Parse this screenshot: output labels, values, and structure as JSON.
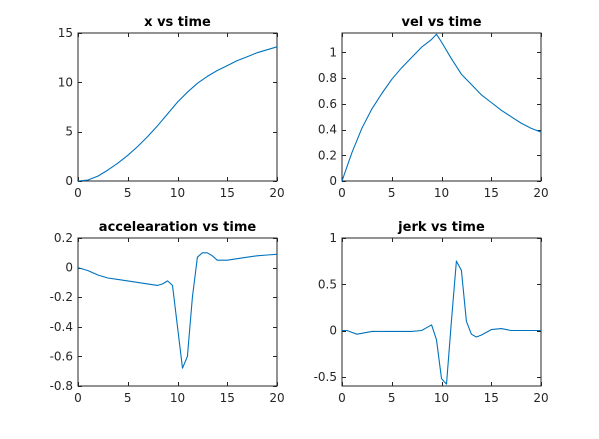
{
  "figure": {
    "background": "#ffffff",
    "line_color": "#0072bd"
  },
  "chart_data": [
    {
      "type": "line",
      "title": "x vs time",
      "xlabel": "",
      "ylabel": "",
      "xlim": [
        0,
        20
      ],
      "ylim": [
        0,
        15
      ],
      "x_ticks": [
        0,
        5,
        10,
        15,
        20
      ],
      "y_ticks": [
        0,
        5,
        10,
        15
      ],
      "grid": false,
      "series": [
        {
          "x": [
            0,
            1,
            2,
            3,
            4,
            5,
            6,
            7,
            8,
            9,
            10,
            11,
            12,
            13,
            14,
            15,
            16,
            17,
            18,
            19,
            20
          ],
          "y": [
            0,
            0.1,
            0.5,
            1.1,
            1.8,
            2.6,
            3.5,
            4.5,
            5.6,
            6.8,
            8.0,
            9.0,
            9.9,
            10.6,
            11.2,
            11.7,
            12.2,
            12.6,
            13.0,
            13.3,
            13.6
          ]
        }
      ]
    },
    {
      "type": "line",
      "title": "vel vs time",
      "xlabel": "",
      "ylabel": "",
      "xlim": [
        0,
        20
      ],
      "ylim": [
        0,
        1.15
      ],
      "x_ticks": [
        0,
        5,
        10,
        15,
        20
      ],
      "y_ticks": [
        0,
        0.2,
        0.4,
        0.6,
        0.8,
        1
      ],
      "grid": false,
      "series": [
        {
          "x": [
            0,
            1,
            2,
            3,
            4,
            5,
            6,
            7,
            8,
            9,
            9.5,
            10,
            11,
            12,
            13,
            14,
            15,
            16,
            17,
            18,
            19,
            20
          ],
          "y": [
            0,
            0.22,
            0.41,
            0.56,
            0.68,
            0.79,
            0.88,
            0.96,
            1.04,
            1.1,
            1.14,
            1.08,
            0.95,
            0.83,
            0.75,
            0.67,
            0.61,
            0.55,
            0.5,
            0.45,
            0.41,
            0.38
          ]
        }
      ]
    },
    {
      "type": "line",
      "title": "accelearation vs time",
      "xlabel": "",
      "ylabel": "",
      "xlim": [
        0,
        20
      ],
      "ylim": [
        -0.8,
        0.2
      ],
      "x_ticks": [
        0,
        5,
        10,
        15,
        20
      ],
      "y_ticks": [
        -0.8,
        -0.6,
        -0.4,
        -0.2,
        0,
        0.2
      ],
      "grid": false,
      "series": [
        {
          "x": [
            0,
            1,
            2,
            3,
            4,
            5,
            6,
            7,
            8,
            8.5,
            9,
            9.5,
            10,
            10.5,
            11,
            11.5,
            12,
            12.5,
            13,
            13.5,
            14,
            15,
            16,
            17,
            18,
            19,
            20
          ],
          "y": [
            0,
            -0.02,
            -0.05,
            -0.07,
            -0.08,
            -0.09,
            -0.1,
            -0.11,
            -0.12,
            -0.11,
            -0.09,
            -0.12,
            -0.4,
            -0.68,
            -0.6,
            -0.2,
            0.07,
            0.1,
            0.1,
            0.08,
            0.05,
            0.05,
            0.06,
            0.07,
            0.08,
            0.085,
            0.09
          ]
        }
      ]
    },
    {
      "type": "line",
      "title": "jerk vs time",
      "xlabel": "",
      "ylabel": "",
      "xlim": [
        0,
        20
      ],
      "ylim": [
        -0.6,
        1
      ],
      "x_ticks": [
        0,
        5,
        10,
        15,
        20
      ],
      "y_ticks": [
        -0.5,
        0,
        0.5,
        1
      ],
      "grid": false,
      "series": [
        {
          "x": [
            0,
            0.5,
            1,
            1.5,
            2,
            3,
            4,
            5,
            6,
            7,
            8,
            8.5,
            9,
            9.5,
            10,
            10.5,
            11,
            11.5,
            12,
            12.5,
            13,
            13.5,
            14,
            14.5,
            15,
            16,
            17,
            18,
            19,
            20
          ],
          "y": [
            0,
            0,
            -0.02,
            -0.04,
            -0.03,
            -0.01,
            -0.01,
            -0.01,
            -0.01,
            -0.01,
            0,
            0.03,
            0.06,
            -0.1,
            -0.52,
            -0.58,
            0.1,
            0.75,
            0.65,
            0.1,
            -0.04,
            -0.07,
            -0.05,
            -0.02,
            0.01,
            0.02,
            0,
            0,
            0,
            0
          ]
        }
      ]
    }
  ]
}
